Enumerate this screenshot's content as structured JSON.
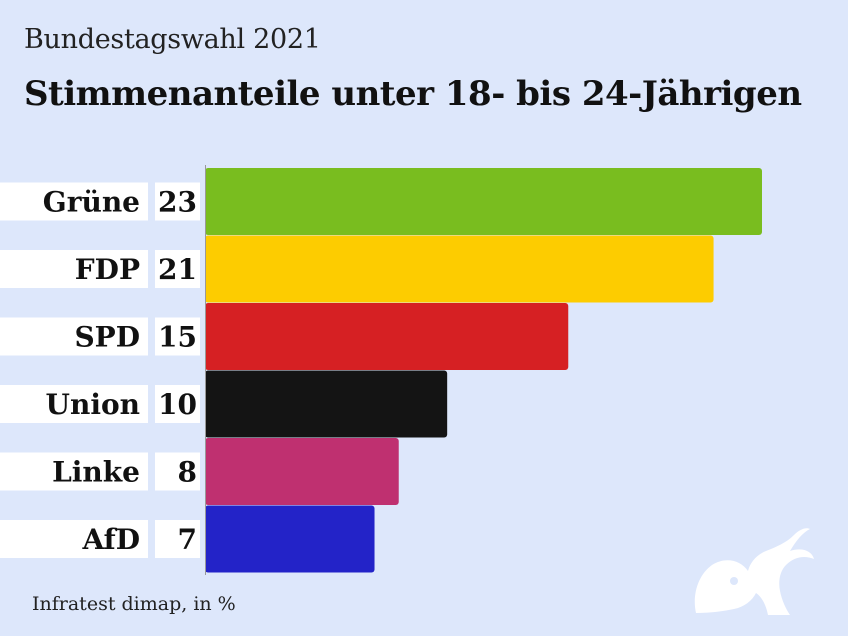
{
  "header": {
    "subtitle": "Bundestagswahl 2021",
    "title": "Stimmenanteile unter 18- bis 24-Jährigen"
  },
  "source": "Infratest dimap, in %",
  "chart_data": {
    "type": "bar",
    "orientation": "horizontal",
    "title": "Stimmenanteile unter 18- bis 24-Jährigen",
    "subtitle": "Bundestagswahl 2021",
    "categories": [
      "Grüne",
      "FDP",
      "SPD",
      "Union",
      "Linke",
      "AfD"
    ],
    "values": [
      23,
      21,
      15,
      10,
      8,
      7
    ],
    "colors": [
      "#79bd1f",
      "#fdcc00",
      "#d62023",
      "#141414",
      "#bf3070",
      "#2323c8"
    ],
    "unit": "%",
    "xlabel": "",
    "ylabel": "",
    "grid": false,
    "data_labels": true
  },
  "logo": {
    "icon": "elephant-head-icon",
    "color": "#ffffff"
  }
}
